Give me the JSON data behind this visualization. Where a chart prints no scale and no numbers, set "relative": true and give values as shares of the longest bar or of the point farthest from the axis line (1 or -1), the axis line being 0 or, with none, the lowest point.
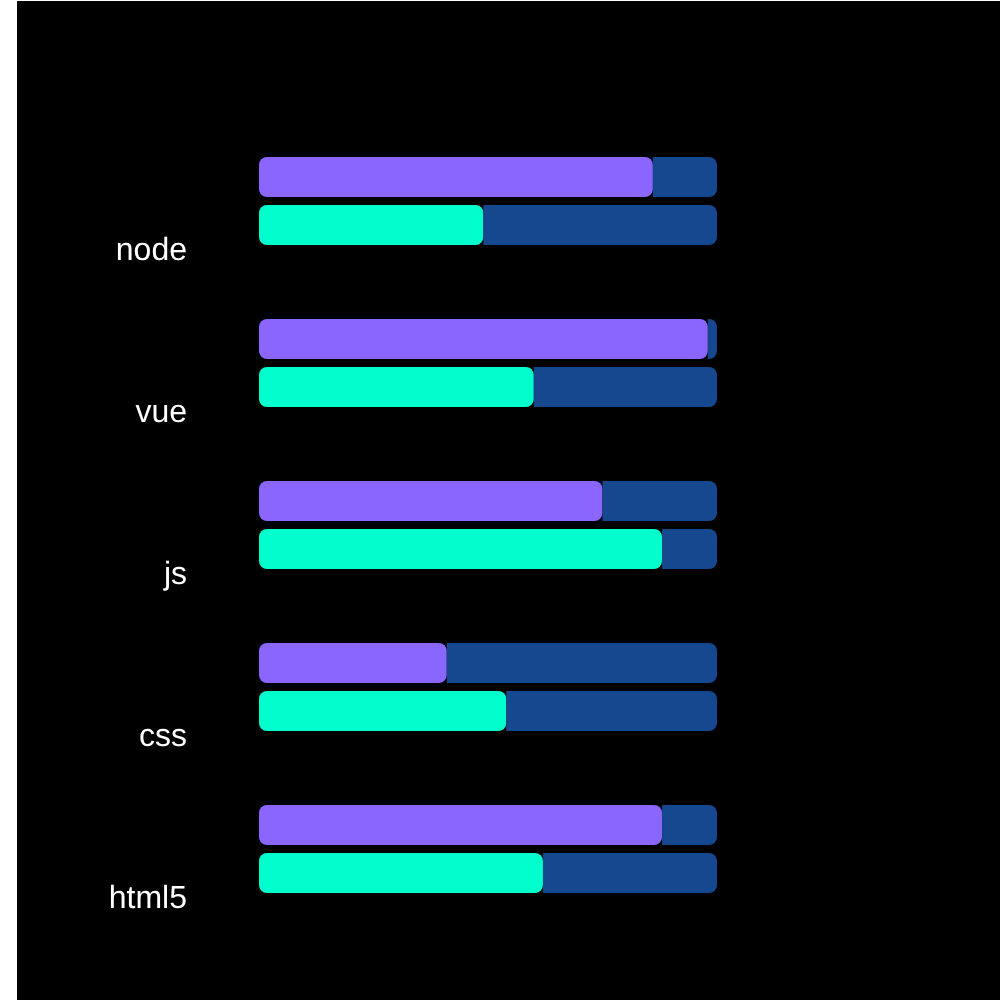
{
  "chart_data": {
    "type": "bar",
    "orientation": "horizontal",
    "stacked": true,
    "relative": true,
    "categories": [
      null,
      "node",
      null,
      "vue",
      null,
      "js",
      null,
      "css",
      null,
      "html5"
    ],
    "series": [
      {
        "colors": [
          "#8a66ff",
          "#00ffcc",
          "#8a66ff",
          "#00ffcc",
          "#8a66ff",
          "#00ffcc",
          "#8a66ff",
          "#00ffcc",
          "#8a66ff",
          "#00ffcc"
        ],
        "values": [
          0.86,
          0.49,
          0.98,
          0.6,
          0.75,
          0.88,
          0.41,
          0.54,
          0.88,
          0.62
        ]
      },
      {
        "color": "#15488f",
        "values": [
          0.14,
          0.51,
          0.02,
          0.4,
          0.25,
          0.12,
          0.59,
          0.46,
          0.12,
          0.38
        ]
      }
    ]
  }
}
